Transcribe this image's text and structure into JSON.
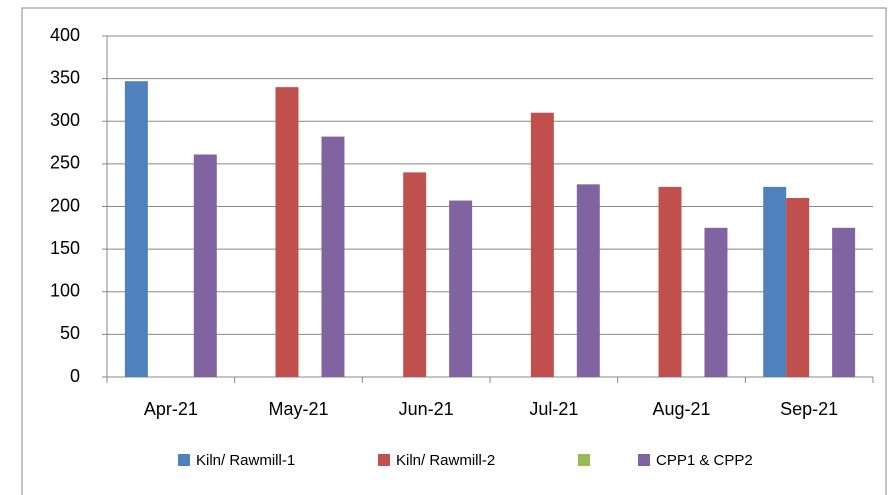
{
  "chart_data": {
    "type": "bar",
    "categories": [
      "Apr-21",
      "May-21",
      "Jun-21",
      "Jul-21",
      "Aug-21",
      "Sep-21"
    ],
    "series": [
      {
        "name": "Kiln/ Rawmill-1",
        "color": "#4f81bd",
        "values": [
          347,
          null,
          null,
          null,
          null,
          223
        ]
      },
      {
        "name": "Kiln/ Rawmill-2",
        "color": "#c0504d",
        "values": [
          null,
          340,
          240,
          310,
          223,
          210
        ]
      },
      {
        "name": null,
        "color": "#9bbb59",
        "values": [
          null,
          null,
          null,
          null,
          null,
          null
        ]
      },
      {
        "name": "CPP1 & CPP2",
        "color": "#8064a2",
        "values": [
          261,
          282,
          207,
          226,
          175,
          175
        ]
      }
    ],
    "ylim": [
      0,
      400
    ],
    "yticks": [
      0,
      50,
      100,
      150,
      200,
      250,
      300,
      350,
      400
    ],
    "grid": true,
    "legend": "bottom"
  }
}
